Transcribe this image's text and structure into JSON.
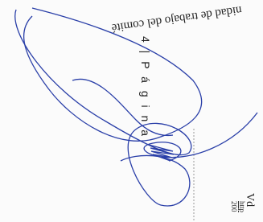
{
  "scan": {
    "top_text": "nidad de trabajo del comité",
    "page_number": "4 | P á g i n a",
    "corner_text": "Vd",
    "link": "http",
    "year": "200"
  }
}
